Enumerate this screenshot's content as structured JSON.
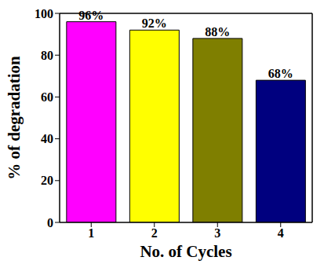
{
  "chart_data": {
    "type": "bar",
    "x_label": "No. of Cycles",
    "y_label": "% of degradation",
    "categories": [
      "1",
      "2",
      "3",
      "4"
    ],
    "values": [
      96,
      92,
      88,
      68
    ],
    "value_labels": [
      "96%",
      "92%",
      "88%",
      "68%"
    ],
    "colors": [
      "#ff00ff",
      "#ffff00",
      "#7f7f00",
      "#00007f"
    ],
    "ylim": [
      0,
      100
    ],
    "yticks": [
      0,
      20,
      40,
      60,
      80,
      100
    ],
    "grid": false,
    "data_labels": true
  }
}
